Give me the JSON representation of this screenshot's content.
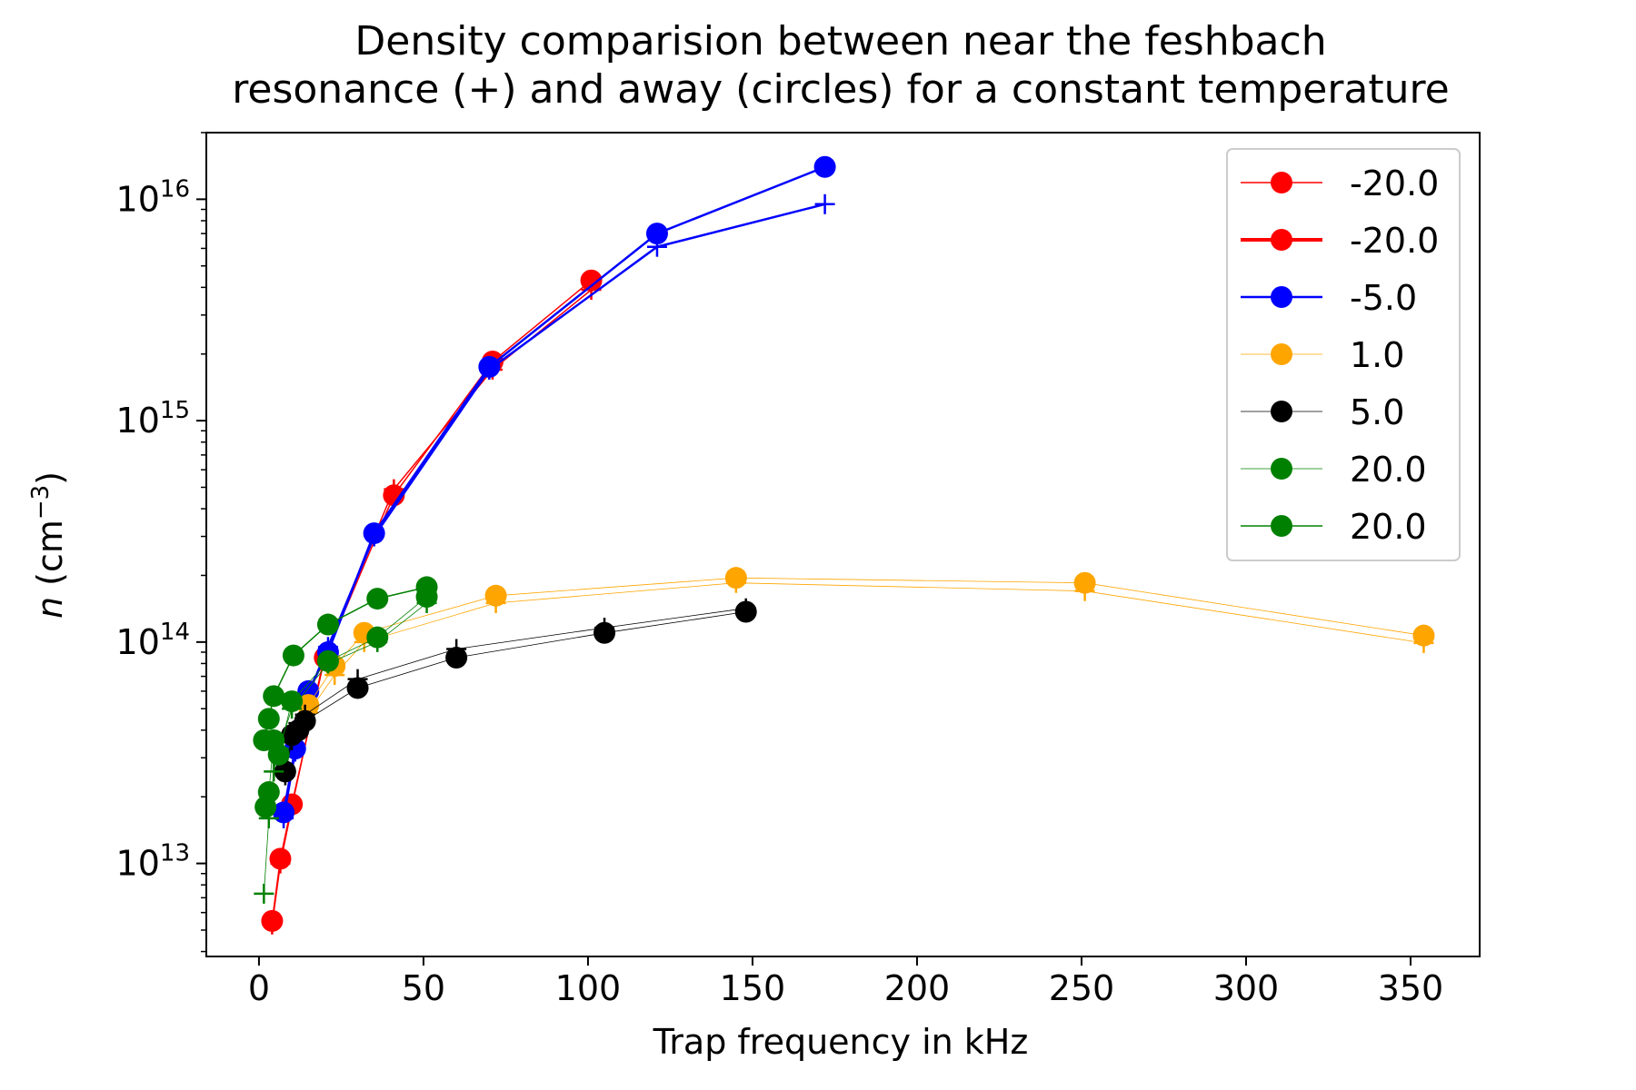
{
  "chart_data": {
    "type": "line",
    "title_lines": [
      "Density comparision between near the feshbach",
      "resonance (+) and away (circles) for a constant temperature"
    ],
    "xlabel": "Trap frequency in kHz",
    "ylabel_italic": "n",
    "ylabel_rest": " (cm",
    "ylabel_sup": "−3",
    "ylabel_close": ")",
    "x_scale": "linear",
    "y_scale": "log",
    "xlim": [
      -16,
      371
    ],
    "ylim": [
      3800000000000.0,
      2e+16
    ],
    "x_ticks": [
      0,
      50,
      100,
      150,
      200,
      250,
      300,
      350
    ],
    "y_ticks": [
      {
        "value": 10000000000000.0,
        "base": "10",
        "exp": "13"
      },
      {
        "value": 100000000000000.0,
        "base": "10",
        "exp": "14"
      },
      {
        "value": 1000000000000000.0,
        "base": "10",
        "exp": "15"
      },
      {
        "value": 1e+16,
        "base": "10",
        "exp": "16"
      }
    ],
    "grid": false,
    "legend_position": "top-right",
    "series": [
      {
        "name": "-20.0",
        "color": "#ff0000",
        "line_width": 1.5,
        "marker": "circle",
        "x": [
          4,
          6.5,
          10,
          20,
          41,
          71,
          101
        ],
        "y": [
          5500000000000.0,
          10500000000000.0,
          18500000000000.0,
          85000000000000.0,
          460000000000000.0,
          1850000000000000.0,
          4300000000000000.0
        ]
      },
      {
        "name": "-20.0",
        "color": "#ff0000",
        "line_width": 1.5,
        "marker": "plus",
        "x": [
          4,
          6.5,
          10,
          20,
          41,
          71,
          101
        ],
        "y": [
          5300000000000.0,
          10000000000000.0,
          18000000000000.0,
          88000000000000.0,
          490000000000000.0,
          1700000000000000.0,
          3900000000000000.0
        ]
      },
      {
        "name": "-5.0",
        "color": "#0000ff",
        "line_width": 2.5,
        "marker": "circle",
        "x": [
          7.5,
          11,
          15,
          21,
          35,
          70,
          121,
          172
        ],
        "y": [
          17000000000000.0,
          33000000000000.0,
          60000000000000.0,
          90000000000000.0,
          310000000000000.0,
          1750000000000000.0,
          7000000000000000.0,
          1.4e+16
        ]
      },
      {
        "name": "-5.0",
        "color": "#0000ff",
        "line_width": 2.5,
        "marker": "plus",
        "x": [
          7.5,
          11,
          15,
          21,
          35,
          70,
          121,
          172
        ],
        "y": [
          16000000000000.0,
          32000000000000.0,
          58000000000000.0,
          95000000000000.0,
          300000000000000.0,
          1700000000000000.0,
          6100000000000000.0,
          9500000000000000.0
        ]
      },
      {
        "name": "1.0",
        "color": "#ffa500",
        "line_width": 0.8,
        "marker": "circle",
        "x": [
          15,
          23,
          32,
          72,
          145,
          251,
          354
        ],
        "y": [
          52000000000000.0,
          78000000000000.0,
          110000000000000.0,
          162000000000000.0,
          195000000000000.0,
          185000000000000.0,
          107000000000000.0
        ]
      },
      {
        "name": "1.0",
        "color": "#ffa500",
        "line_width": 0.8,
        "marker": "plus",
        "x": [
          15,
          23,
          32,
          72,
          145,
          251,
          354
        ],
        "y": [
          48000000000000.0,
          71000000000000.0,
          100000000000000.0,
          150000000000000.0,
          185000000000000.0,
          170000000000000.0,
          99000000000000.0
        ]
      },
      {
        "name": "5.0",
        "color": "#000000",
        "line_width": 0.8,
        "marker": "circle",
        "x": [
          8,
          10,
          12,
          14,
          30,
          60,
          105,
          148
        ],
        "y": [
          26000000000000.0,
          38000000000000.0,
          40000000000000.0,
          44000000000000.0,
          62000000000000.0,
          85000000000000.0,
          110000000000000.0,
          137000000000000.0
        ]
      },
      {
        "name": "5.0",
        "color": "#000000",
        "line_width": 0.8,
        "marker": "plus",
        "x": [
          8,
          10,
          12,
          14,
          30,
          60,
          105,
          148
        ],
        "y": [
          25000000000000.0,
          36000000000000.0,
          43000000000000.0,
          47000000000000.0,
          68000000000000.0,
          93000000000000.0,
          116000000000000.0,
          142000000000000.0
        ]
      },
      {
        "name": "20.0",
        "color": "#008000",
        "line_width": 0.8,
        "marker": "circle",
        "x": [
          2,
          3,
          4.5,
          6,
          10,
          21,
          36,
          51
        ],
        "y": [
          18000000000000.0,
          21000000000000.0,
          36000000000000.0,
          31000000000000.0,
          54000000000000.0,
          82000000000000.0,
          105000000000000.0,
          160000000000000.0
        ]
      },
      {
        "name": "20.0",
        "color": "#008000",
        "line_width": 0.8,
        "marker": "plus",
        "x": [
          1.5,
          3,
          4.5,
          6,
          10,
          21,
          36,
          51
        ],
        "y": [
          7300000000000.0,
          16000000000000.0,
          26000000000000.0,
          33000000000000.0,
          50000000000000.0,
          80000000000000.0,
          100000000000000.0,
          150000000000000.0
        ]
      },
      {
        "name": "20.0",
        "color": "#008000",
        "line_width": 1.5,
        "marker": "circle",
        "x": [
          1.5,
          3,
          4.5,
          10.5,
          21,
          36,
          51
        ],
        "y": [
          36000000000000.0,
          45000000000000.0,
          57000000000000.0,
          87000000000000.0,
          120000000000000.0,
          157000000000000.0,
          177000000000000.0
        ]
      }
    ],
    "legend": [
      {
        "label": "-20.0",
        "color": "#ff0000",
        "line_width": 1.5
      },
      {
        "label": "-20.0",
        "color": "#ff0000",
        "line_width": 4
      },
      {
        "label": "-5.0",
        "color": "#0000ff",
        "line_width": 2.5
      },
      {
        "label": "1.0",
        "color": "#ffa500",
        "line_width": 0.8
      },
      {
        "label": "5.0",
        "color": "#000000",
        "line_width": 0.8
      },
      {
        "label": "20.0",
        "color": "#008000",
        "line_width": 0.8
      },
      {
        "label": "20.0",
        "color": "#008000",
        "line_width": 1.5
      }
    ]
  }
}
